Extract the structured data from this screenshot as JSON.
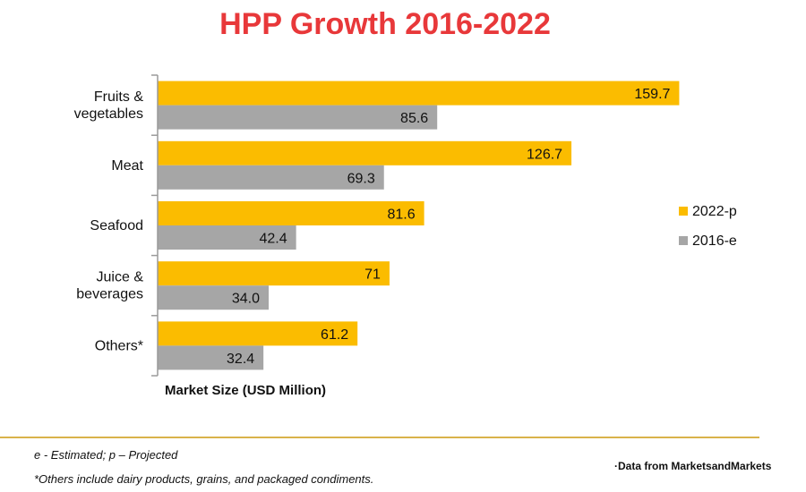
{
  "colors": {
    "title": "#e8383a",
    "series_2022": "#fbbc00",
    "series_2016": "#a6a6a6",
    "axis": "#9a9a9a",
    "rule": "#d9b34a"
  },
  "footer": {
    "note1": "e - Estimated; p – Projected",
    "note2": "*Others include dairy products, grains, and packaged condiments.",
    "source": "·Data from MarketsandMarkets"
  },
  "chart_data": {
    "type": "bar",
    "orientation": "horizontal",
    "title": "HPP Growth 2016-2022",
    "xlabel": "Market Size (USD Million)",
    "ylabel": "",
    "categories": [
      [
        "Fruits &",
        "vegetables"
      ],
      [
        "Meat"
      ],
      [
        "Seafood"
      ],
      [
        "Juice &",
        "beverages"
      ],
      [
        "Others*"
      ]
    ],
    "series": [
      {
        "name": "2022-p",
        "values": [
          159.7,
          126.7,
          81.6,
          71,
          61.2
        ],
        "labels": [
          "159.7",
          "126.7",
          "81.6",
          "71",
          "61.2"
        ]
      },
      {
        "name": "2016-e",
        "values": [
          85.6,
          69.3,
          42.4,
          34.0,
          32.4
        ],
        "labels": [
          "85.6",
          "69.3",
          "42.4",
          "34.0",
          "32.4"
        ]
      }
    ],
    "xlim": [
      0,
      170
    ],
    "grid": false,
    "legend_position": "right"
  }
}
